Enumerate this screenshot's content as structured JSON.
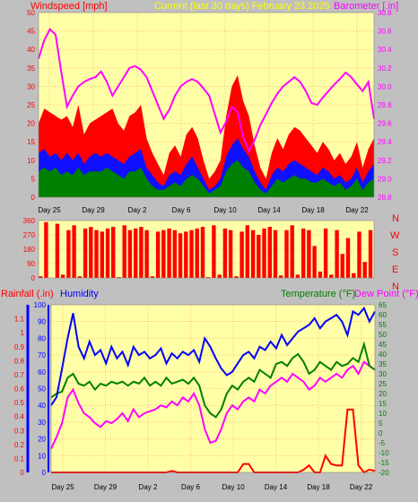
{
  "colors": {
    "background": "#c0c0c0",
    "plot_bg": "#ffffa8",
    "grid": "#ff9a4d",
    "windspeed": "#ff0000",
    "wind_gust_mid": "#1010ff",
    "wind_low": "#008000",
    "barometer": "#ff00ff",
    "direction": "#ff0000",
    "humidity": "#0000ff",
    "temperature": "#008000",
    "dew_point": "#ff00ff",
    "rainfall": "#ff0000",
    "title_yellow": "#ffff00",
    "left_axis_red": "#ff0000"
  },
  "header": {
    "windspeed_label": "Windspeed [mph]",
    "title": "Current (last 30 days) February 23 2025",
    "barometer_label": "Barometer [.in]"
  },
  "middle": {
    "compass": [
      "N",
      "W",
      "S",
      "E",
      "N"
    ]
  },
  "bottom_header": {
    "rainfall_label": "Rainfall (.in)",
    "humidity_label": "Humidity",
    "temperature_label": "Temperature (°F)",
    "dewpoint_label": "Dew Point (°F)"
  },
  "chart_data": [
    {
      "type": "area",
      "id": "wind_barometer",
      "x_tick_labels": [
        "Day 25",
        "Day 29",
        "Day 2",
        "Day 6",
        "Day 10",
        "Day 14",
        "Day 18",
        "Day 22"
      ],
      "left_axis": {
        "label": "Windspeed [mph]",
        "ticks": [
          0,
          5,
          10,
          15,
          20,
          25,
          30,
          35,
          40,
          45,
          50
        ],
        "ylim": [
          0,
          50
        ]
      },
      "right_axis": {
        "label": "Barometer [.in]",
        "ticks": [
          28.8,
          29,
          29.2,
          29.4,
          29.6,
          29.8,
          30,
          30.2,
          30.4,
          30.6,
          30.8
        ],
        "ylim": [
          28.8,
          30.8
        ]
      },
      "series": [
        {
          "name": "Windspeed",
          "axis": "left",
          "values": [
            20,
            24,
            23,
            22,
            21,
            22,
            19,
            25,
            17,
            20,
            21,
            22,
            23,
            24,
            20,
            18,
            22,
            23,
            25,
            16,
            12,
            9,
            6,
            12,
            14,
            11,
            17,
            19,
            16,
            10,
            5,
            7,
            10,
            22,
            30,
            33,
            26,
            22,
            14,
            8,
            5,
            12,
            16,
            13,
            17,
            19,
            18,
            16,
            14,
            12,
            15,
            13,
            10,
            12,
            9,
            11,
            15,
            8,
            13,
            16
          ]
        },
        {
          "name": "Wind mid",
          "axis": "left",
          "values": [
            12,
            13,
            11,
            12,
            10,
            12,
            10,
            12,
            9,
            11,
            12,
            11,
            12,
            11,
            10,
            9,
            11,
            12,
            13,
            8,
            6,
            4,
            3,
            6,
            7,
            6,
            9,
            11,
            8,
            5,
            2,
            3,
            5,
            11,
            14,
            16,
            13,
            11,
            7,
            4,
            2,
            6,
            8,
            7,
            9,
            10,
            9,
            8,
            7,
            6,
            8,
            7,
            5,
            6,
            4,
            5,
            8,
            4,
            7,
            9
          ]
        },
        {
          "name": "Wind low",
          "axis": "left",
          "values": [
            7,
            8,
            7,
            8,
            6,
            7,
            6,
            8,
            6,
            7,
            7,
            7,
            8,
            7,
            6,
            5,
            7,
            7,
            8,
            5,
            3,
            2,
            2,
            3,
            4,
            3,
            5,
            6,
            5,
            3,
            1,
            2,
            3,
            7,
            9,
            10,
            8,
            7,
            4,
            2,
            1,
            3,
            5,
            4,
            5,
            6,
            5,
            5,
            4,
            4,
            5,
            4,
            3,
            4,
            2,
            3,
            5,
            2,
            4,
            5
          ]
        },
        {
          "name": "Barometer",
          "axis": "right",
          "values": [
            30.3,
            30.5,
            30.62,
            30.56,
            30.15,
            29.78,
            29.9,
            30.0,
            30.05,
            30.08,
            30.1,
            30.16,
            30.05,
            29.9,
            30.0,
            30.1,
            30.2,
            30.22,
            30.18,
            30.1,
            29.95,
            29.8,
            29.65,
            29.75,
            29.9,
            30.0,
            30.05,
            30.08,
            30.05,
            29.98,
            29.9,
            29.7,
            29.5,
            29.62,
            29.78,
            29.72,
            29.45,
            29.3,
            29.42,
            29.58,
            29.7,
            29.82,
            29.92,
            30.0,
            30.05,
            30.1,
            30.05,
            29.95,
            29.82,
            29.8,
            29.88,
            29.95,
            30.02,
            30.08,
            30.15,
            30.1,
            30.02,
            29.95,
            30.05,
            29.65
          ]
        }
      ]
    },
    {
      "type": "bar",
      "id": "wind_direction",
      "left_axis": {
        "ticks": [
          0,
          90,
          180,
          270,
          360
        ],
        "ylim": [
          0,
          360
        ]
      },
      "x_tick_labels": [],
      "series": [
        {
          "name": "Direction",
          "values": [
            10,
            350,
            0,
            340,
            20,
            300,
            330,
            10,
            310,
            320,
            300,
            290,
            310,
            320,
            5,
            330,
            300,
            310,
            320,
            300,
            10,
            290,
            300,
            310,
            300,
            280,
            290,
            300,
            310,
            320,
            5,
            330,
            20,
            310,
            300,
            10,
            290,
            330,
            300,
            270,
            310,
            320,
            300,
            15,
            300,
            330,
            20,
            310,
            300,
            200,
            40,
            310,
            20,
            300,
            150,
            250,
            30,
            290,
            100,
            300
          ]
        }
      ]
    },
    {
      "type": "line",
      "id": "humidity_temperature",
      "x_tick_labels": [
        "Day 25",
        "Day 29",
        "Day 2",
        "Day 6",
        "Day 10",
        "Day 14",
        "Day 18",
        "Day 22"
      ],
      "left_axis": {
        "label": "Rainfall (.in)",
        "ticks": [
          0,
          0.1,
          0.2,
          0.3,
          0.4,
          0.5,
          0.6,
          0.7,
          0.8,
          0.9,
          1,
          1.1
        ],
        "ylim": [
          0,
          1.2
        ]
      },
      "inner_left_axis": {
        "label": "Humidity",
        "ticks": [
          0,
          10,
          20,
          30,
          40,
          50,
          60,
          70,
          80,
          90,
          100
        ],
        "ylim": [
          0,
          100
        ]
      },
      "right_axis": {
        "label": "Temperature (°F)",
        "ticks": [
          -20,
          -15,
          -10,
          -5,
          0,
          5,
          10,
          15,
          20,
          25,
          30,
          35,
          40,
          45,
          50,
          55,
          60,
          65
        ],
        "ylim": [
          -20,
          65
        ]
      },
      "series": [
        {
          "name": "Humidity",
          "axis": "inner_left",
          "values": [
            40,
            45,
            62,
            80,
            95,
            75,
            68,
            78,
            70,
            73,
            65,
            75,
            68,
            72,
            64,
            75,
            70,
            72,
            68,
            70,
            74,
            65,
            71,
            68,
            72,
            70,
            73,
            66,
            80,
            75,
            68,
            62,
            58,
            60,
            65,
            70,
            72,
            68,
            75,
            73,
            78,
            74,
            82,
            76,
            80,
            84,
            86,
            88,
            92,
            86,
            90,
            92,
            94,
            90,
            82,
            96,
            94,
            98,
            90,
            96
          ]
        },
        {
          "name": "Temperature",
          "axis": "right",
          "values": [
            18,
            20,
            21,
            28,
            30,
            25,
            24,
            26,
            22,
            25,
            24,
            26,
            25,
            26,
            24,
            26,
            25,
            28,
            24,
            26,
            24,
            28,
            25,
            26,
            27,
            25,
            28,
            24,
            14,
            10,
            8,
            12,
            20,
            24,
            22,
            26,
            28,
            26,
            32,
            30,
            28,
            35,
            36,
            34,
            38,
            40,
            36,
            30,
            32,
            36,
            34,
            32,
            36,
            34,
            35,
            38,
            36,
            45,
            34,
            32
          ]
        },
        {
          "name": "Dew Point",
          "axis": "right",
          "values": [
            -8,
            -2,
            5,
            18,
            22,
            15,
            10,
            8,
            5,
            3,
            6,
            5,
            7,
            10,
            6,
            12,
            8,
            10,
            11,
            12,
            14,
            13,
            16,
            14,
            18,
            16,
            20,
            14,
            2,
            -5,
            -4,
            2,
            10,
            14,
            12,
            16,
            18,
            16,
            22,
            20,
            24,
            26,
            28,
            26,
            30,
            28,
            26,
            22,
            24,
            28,
            26,
            28,
            30,
            28,
            32,
            34,
            30,
            36,
            34,
            32
          ]
        },
        {
          "name": "Rainfall",
          "axis": "left",
          "values": [
            0,
            0,
            0,
            0,
            0,
            0,
            0,
            0,
            0,
            0,
            0,
            0,
            0,
            0,
            0,
            0,
            0,
            0,
            0,
            0,
            0,
            0,
            0.01,
            0,
            0,
            0,
            0,
            0,
            0,
            0,
            0,
            0,
            0,
            0,
            0,
            0.06,
            0.06,
            0,
            0,
            0,
            0,
            0,
            0,
            0,
            0,
            0,
            0.02,
            0.05,
            0,
            0,
            0.12,
            0.06,
            0.05,
            0.05,
            0.45,
            0.45,
            0.05,
            0,
            0.02,
            0.01
          ]
        }
      ]
    }
  ]
}
